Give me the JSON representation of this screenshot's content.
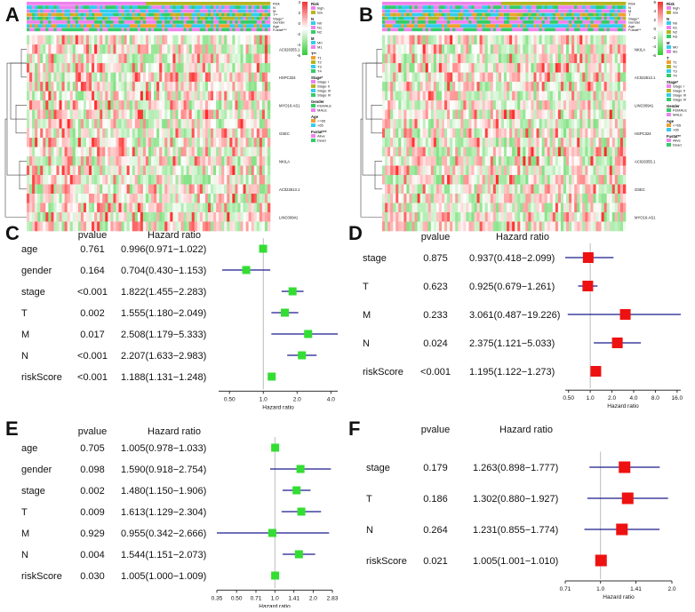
{
  "panels": {
    "a": "A",
    "b": "B",
    "c": "C",
    "d": "D",
    "e": "E",
    "f": "F"
  },
  "colors": {
    "hm_low": "#33cc33",
    "hm_mid": "#ffffff",
    "hm_high": "#ee3333",
    "pink": "#ee82ee",
    "olive": "#b5b520",
    "cyan": "#33ccee",
    "green": "#33cc66",
    "orange": "#f0a030",
    "forest_green": "#33dd33",
    "forest_red": "#ee1111",
    "ci_line": "#1a1a8c",
    "ref_line": "#bbbbbb"
  },
  "heatmap_A": {
    "annotations": [
      "Risk",
      "N",
      "M",
      "T**",
      "Stage*",
      "Gender",
      "Age",
      "Fustat***"
    ],
    "genes": [
      "AC026355.1",
      "HSPC324",
      "MYO16-AS1",
      "GSEC",
      "NKILA",
      "AC022613.1",
      "LINC00941"
    ],
    "scale_ticks": [
      "4",
      "2",
      "0",
      "-2",
      "-4",
      "-6"
    ],
    "legend": [
      {
        "title": "Risk",
        "items": [
          {
            "label": "high",
            "color": "#ee82ee"
          },
          {
            "label": "low",
            "color": "#b5b520"
          }
        ]
      },
      {
        "title": "N",
        "items": [
          {
            "label": "N0",
            "color": "#33ccee"
          },
          {
            "label": "N1",
            "color": "#ee82ee"
          },
          {
            "label": "N2",
            "color": "#33cc66"
          }
        ]
      },
      {
        "title": "M",
        "items": [
          {
            "label": "M0",
            "color": "#33ccee"
          },
          {
            "label": "M1",
            "color": "#ee82ee"
          }
        ]
      },
      {
        "title": "T**",
        "items": [
          {
            "label": "T1",
            "color": "#f0a030"
          },
          {
            "label": "T2",
            "color": "#b5b520"
          },
          {
            "label": "T3",
            "color": "#33ccee"
          },
          {
            "label": "T4",
            "color": "#33cc66"
          }
        ]
      },
      {
        "title": "Stage*",
        "items": [
          {
            "label": "Stage I",
            "color": "#ee82ee"
          },
          {
            "label": "Stage II",
            "color": "#b5b520"
          },
          {
            "label": "Stage III",
            "color": "#33ccee"
          },
          {
            "label": "Stage IV",
            "color": "#33cc66"
          }
        ]
      },
      {
        "title": "Gender",
        "items": [
          {
            "label": "FEMALE",
            "color": "#33cc66"
          },
          {
            "label": "MALE",
            "color": "#ee82ee"
          }
        ]
      },
      {
        "title": "Age",
        "items": [
          {
            "label": "<=65",
            "color": "#f0a030"
          },
          {
            "label": ">65",
            "color": "#33ccee"
          }
        ]
      },
      {
        "title": "Fustat***",
        "items": [
          {
            "label": "Alive",
            "color": "#ee82ee"
          },
          {
            "label": "Dead",
            "color": "#33cc66"
          }
        ]
      }
    ]
  },
  "heatmap_B": {
    "annotations": [
      "Risk",
      "N",
      "M",
      "T",
      "Stage*",
      "Gender",
      "Age",
      "Fustat**"
    ],
    "genes": [
      "NKILA",
      "AC022613.1",
      "LINC00941",
      "HSPC324",
      "AC026355.1",
      "GSEC",
      "MYO16-AS1"
    ],
    "scale_ticks": [
      "6",
      "4",
      "2",
      "0",
      "-2",
      "-4",
      "-6"
    ],
    "legend": [
      {
        "title": "Risk",
        "items": [
          {
            "label": "high",
            "color": "#ee82ee"
          },
          {
            "label": "low",
            "color": "#b5b520"
          }
        ]
      },
      {
        "title": "N",
        "items": [
          {
            "label": "N0",
            "color": "#33ccee"
          },
          {
            "label": "N1",
            "color": "#ee82ee"
          },
          {
            "label": "N2",
            "color": "#b5b520"
          },
          {
            "label": "N3",
            "color": "#33cc66"
          }
        ]
      },
      {
        "title": "M",
        "items": [
          {
            "label": "M0",
            "color": "#33ccee"
          },
          {
            "label": "M1",
            "color": "#ee82ee"
          }
        ]
      },
      {
        "title": "T",
        "items": [
          {
            "label": "T1",
            "color": "#f0a030"
          },
          {
            "label": "T2",
            "color": "#b5b520"
          },
          {
            "label": "T3",
            "color": "#33ccee"
          },
          {
            "label": "T4",
            "color": "#33cc66"
          }
        ]
      },
      {
        "title": "Stage*",
        "items": [
          {
            "label": "Stage I",
            "color": "#ee82ee"
          },
          {
            "label": "Stage II",
            "color": "#b5b520"
          },
          {
            "label": "Stage III",
            "color": "#33ccee"
          },
          {
            "label": "Stage IV",
            "color": "#33cc66"
          }
        ]
      },
      {
        "title": "Gender",
        "items": [
          {
            "label": "FEMALE",
            "color": "#33cc66"
          },
          {
            "label": "MALE",
            "color": "#ee82ee"
          }
        ]
      },
      {
        "title": "Age",
        "items": [
          {
            "label": "<=65",
            "color": "#f0a030"
          },
          {
            "label": ">65",
            "color": "#33ccee"
          }
        ]
      },
      {
        "title": "Fustat**",
        "items": [
          {
            "label": "Alive",
            "color": "#ee82ee"
          },
          {
            "label": "Dead",
            "color": "#33cc66"
          }
        ]
      }
    ]
  },
  "chart_data": [
    {
      "id": "C",
      "type": "forest",
      "title": "",
      "header_p": "pvalue",
      "header_hr": "Hazard ratio",
      "xlabel": "Hazard ratio",
      "scale": "log2",
      "xlim": [
        0.4,
        4.6
      ],
      "ticks": [
        {
          "v": 0.5,
          "label": "0.50"
        },
        {
          "v": 1,
          "label": "1.0"
        },
        {
          "v": 2,
          "label": "2.0"
        },
        {
          "v": 4,
          "label": "4.0"
        }
      ],
      "marker": "green",
      "rows": [
        {
          "name": "age",
          "p": "0.761",
          "hr_text": "0.996(0.971−1.022)",
          "hr": 0.996,
          "lo": 0.971,
          "hi": 1.022
        },
        {
          "name": "gender",
          "p": "0.164",
          "hr_text": "0.704(0.430−1.153)",
          "hr": 0.704,
          "lo": 0.43,
          "hi": 1.153
        },
        {
          "name": "stage",
          "p": "<0.001",
          "hr_text": "1.822(1.455−2.283)",
          "hr": 1.822,
          "lo": 1.455,
          "hi": 2.283
        },
        {
          "name": "T",
          "p": "0.002",
          "hr_text": "1.555(1.180−2.049)",
          "hr": 1.555,
          "lo": 1.18,
          "hi": 2.049
        },
        {
          "name": "M",
          "p": "0.017",
          "hr_text": "2.508(1.179−5.333)",
          "hr": 2.508,
          "lo": 1.179,
          "hi": 5.333
        },
        {
          "name": "N",
          "p": "<0.001",
          "hr_text": "2.207(1.633−2.983)",
          "hr": 2.207,
          "lo": 1.633,
          "hi": 2.983
        },
        {
          "name": "riskScore",
          "p": "<0.001",
          "hr_text": "1.188(1.131−1.248)",
          "hr": 1.188,
          "lo": 1.131,
          "hi": 1.248
        }
      ]
    },
    {
      "id": "D",
      "type": "forest",
      "title": "",
      "header_p": "pvalue",
      "header_hr": "Hazard ratio",
      "xlabel": "Hazard ratio",
      "scale": "log2",
      "xlim": [
        0.45,
        18
      ],
      "ticks": [
        {
          "v": 0.5,
          "label": "0.50"
        },
        {
          "v": 1,
          "label": "1.0"
        },
        {
          "v": 2,
          "label": "2.0"
        },
        {
          "v": 4,
          "label": "4.0"
        },
        {
          "v": 8,
          "label": "8.0"
        },
        {
          "v": 16,
          "label": "16.0"
        }
      ],
      "marker": "red",
      "rows": [
        {
          "name": "stage",
          "p": "0.875",
          "hr_text": "0.937(0.418−2.099)",
          "hr": 0.937,
          "lo": 0.418,
          "hi": 2.099
        },
        {
          "name": "T",
          "p": "0.623",
          "hr_text": "0.925(0.679−1.261)",
          "hr": 0.925,
          "lo": 0.679,
          "hi": 1.261
        },
        {
          "name": "M",
          "p": "0.233",
          "hr_text": "3.061(0.487−19.226)",
          "hr": 3.061,
          "lo": 0.487,
          "hi": 19.226
        },
        {
          "name": "N",
          "p": "0.024",
          "hr_text": "2.375(1.121−5.033)",
          "hr": 2.375,
          "lo": 1.121,
          "hi": 5.033
        },
        {
          "name": "riskScore",
          "p": "<0.001",
          "hr_text": "1.195(1.122−1.273)",
          "hr": 1.195,
          "lo": 1.122,
          "hi": 1.273
        }
      ]
    },
    {
      "id": "E",
      "type": "forest",
      "title": "",
      "header_p": "pvalue",
      "header_hr": "Hazard ratio",
      "xlabel": "Hazard ratio",
      "scale": "log2",
      "xlim": [
        0.35,
        2.83
      ],
      "ticks": [
        {
          "v": 0.35,
          "label": "0.35"
        },
        {
          "v": 0.5,
          "label": "0.50"
        },
        {
          "v": 0.71,
          "label": "0.71"
        },
        {
          "v": 1,
          "label": "1.0"
        },
        {
          "v": 1.41,
          "label": "1.41"
        },
        {
          "v": 2,
          "label": "2.0"
        },
        {
          "v": 2.83,
          "label": "2.83"
        }
      ],
      "marker": "green",
      "rows": [
        {
          "name": "age",
          "p": "0.705",
          "hr_text": "1.005(0.978−1.033)",
          "hr": 1.005,
          "lo": 0.978,
          "hi": 1.033
        },
        {
          "name": "gender",
          "p": "0.098",
          "hr_text": "1.590(0.918−2.754)",
          "hr": 1.59,
          "lo": 0.918,
          "hi": 2.754
        },
        {
          "name": "stage",
          "p": "0.002",
          "hr_text": "1.480(1.150−1.906)",
          "hr": 1.48,
          "lo": 1.15,
          "hi": 1.906
        },
        {
          "name": "T",
          "p": "0.009",
          "hr_text": "1.613(1.129−2.304)",
          "hr": 1.613,
          "lo": 1.129,
          "hi": 2.304
        },
        {
          "name": "M",
          "p": "0.929",
          "hr_text": "0.955(0.342−2.666)",
          "hr": 0.955,
          "lo": 0.342,
          "hi": 2.666
        },
        {
          "name": "N",
          "p": "0.004",
          "hr_text": "1.544(1.151−2.073)",
          "hr": 1.544,
          "lo": 1.151,
          "hi": 2.073
        },
        {
          "name": "riskScore",
          "p": "0.030",
          "hr_text": "1.005(1.000−1.009)",
          "hr": 1.005,
          "lo": 1.0,
          "hi": 1.009
        }
      ]
    },
    {
      "id": "F",
      "type": "forest",
      "title": "",
      "header_p": "pvalue",
      "header_hr": "Hazard ratio",
      "xlabel": "Hazard ratio",
      "scale": "log2",
      "xlim": [
        0.71,
        2.0
      ],
      "ticks": [
        {
          "v": 0.71,
          "label": "0.71"
        },
        {
          "v": 1,
          "label": "1.0"
        },
        {
          "v": 1.41,
          "label": "1.41"
        },
        {
          "v": 2,
          "label": "2.0"
        }
      ],
      "marker": "red",
      "rows": [
        {
          "name": "stage",
          "p": "0.179",
          "hr_text": "1.263(0.898−1.777)",
          "hr": 1.263,
          "lo": 0.898,
          "hi": 1.777
        },
        {
          "name": "T",
          "p": "0.186",
          "hr_text": "1.302(0.880−1.927)",
          "hr": 1.302,
          "lo": 0.88,
          "hi": 1.927
        },
        {
          "name": "N",
          "p": "0.264",
          "hr_text": "1.231(0.855−1.774)",
          "hr": 1.231,
          "lo": 0.855,
          "hi": 1.774
        },
        {
          "name": "riskScore",
          "p": "0.021",
          "hr_text": "1.005(1.001−1.010)",
          "hr": 1.005,
          "lo": 1.001,
          "hi": 1.01
        }
      ]
    }
  ]
}
